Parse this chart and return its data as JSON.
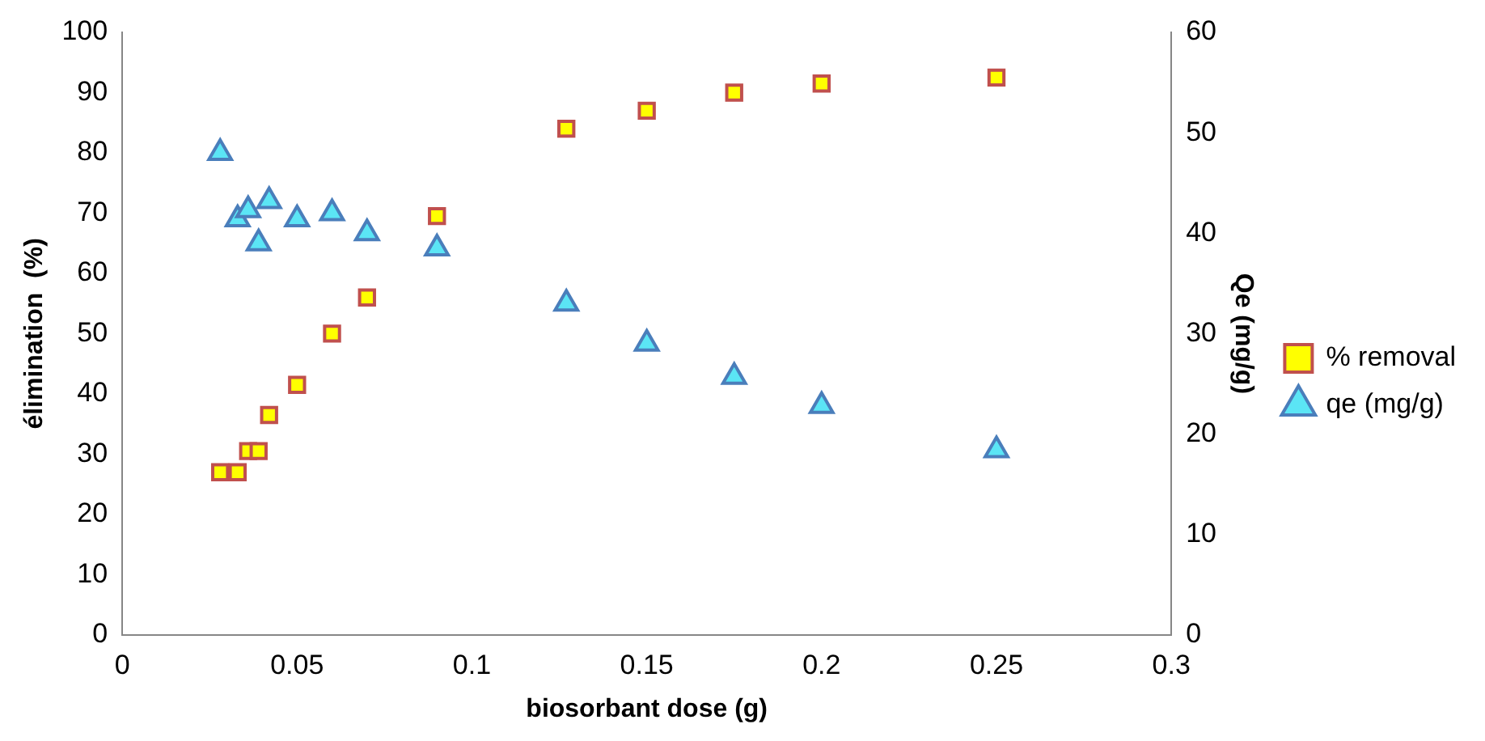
{
  "chart_data": {
    "type": "scatter",
    "xlabel": "biosorbant dose (g)",
    "ylabel": "élimination  (%)",
    "y2label": "Qe (mg/g)",
    "x": [
      0.028,
      0.033,
      0.036,
      0.039,
      0.042,
      0.05,
      0.06,
      0.07,
      0.09,
      0.127,
      0.15,
      0.175,
      0.2,
      0.25
    ],
    "series": [
      {
        "name": "% removal",
        "color": "#ffff00",
        "marker": "square",
        "values": [
          27,
          27,
          30.5,
          30.5,
          36.5,
          41.5,
          50,
          56,
          69.5,
          84,
          87,
          90,
          91.5,
          92.5
        ]
      },
      {
        "name": "qe (mg/g)",
        "color": "#5be5f5",
        "marker": "triangle",
        "axis": "y2",
        "values": [
          48,
          41.4,
          42.3,
          39,
          43.2,
          41.4,
          42,
          40,
          38.5,
          33,
          29,
          25.7,
          22.8,
          18.4
        ]
      }
    ],
    "xlim": [
      0,
      0.3
    ],
    "xticks": [
      0,
      0.05,
      0.1,
      0.15,
      0.2,
      0.25,
      0.3
    ],
    "ylim": [
      0,
      100
    ],
    "yticks": [
      0,
      10,
      20,
      30,
      40,
      50,
      60,
      70,
      80,
      90,
      100
    ],
    "y2lim": [
      0,
      60
    ],
    "y2ticks": [
      0,
      10,
      20,
      30,
      40,
      50,
      60
    ],
    "grid": false,
    "legend": "right"
  }
}
